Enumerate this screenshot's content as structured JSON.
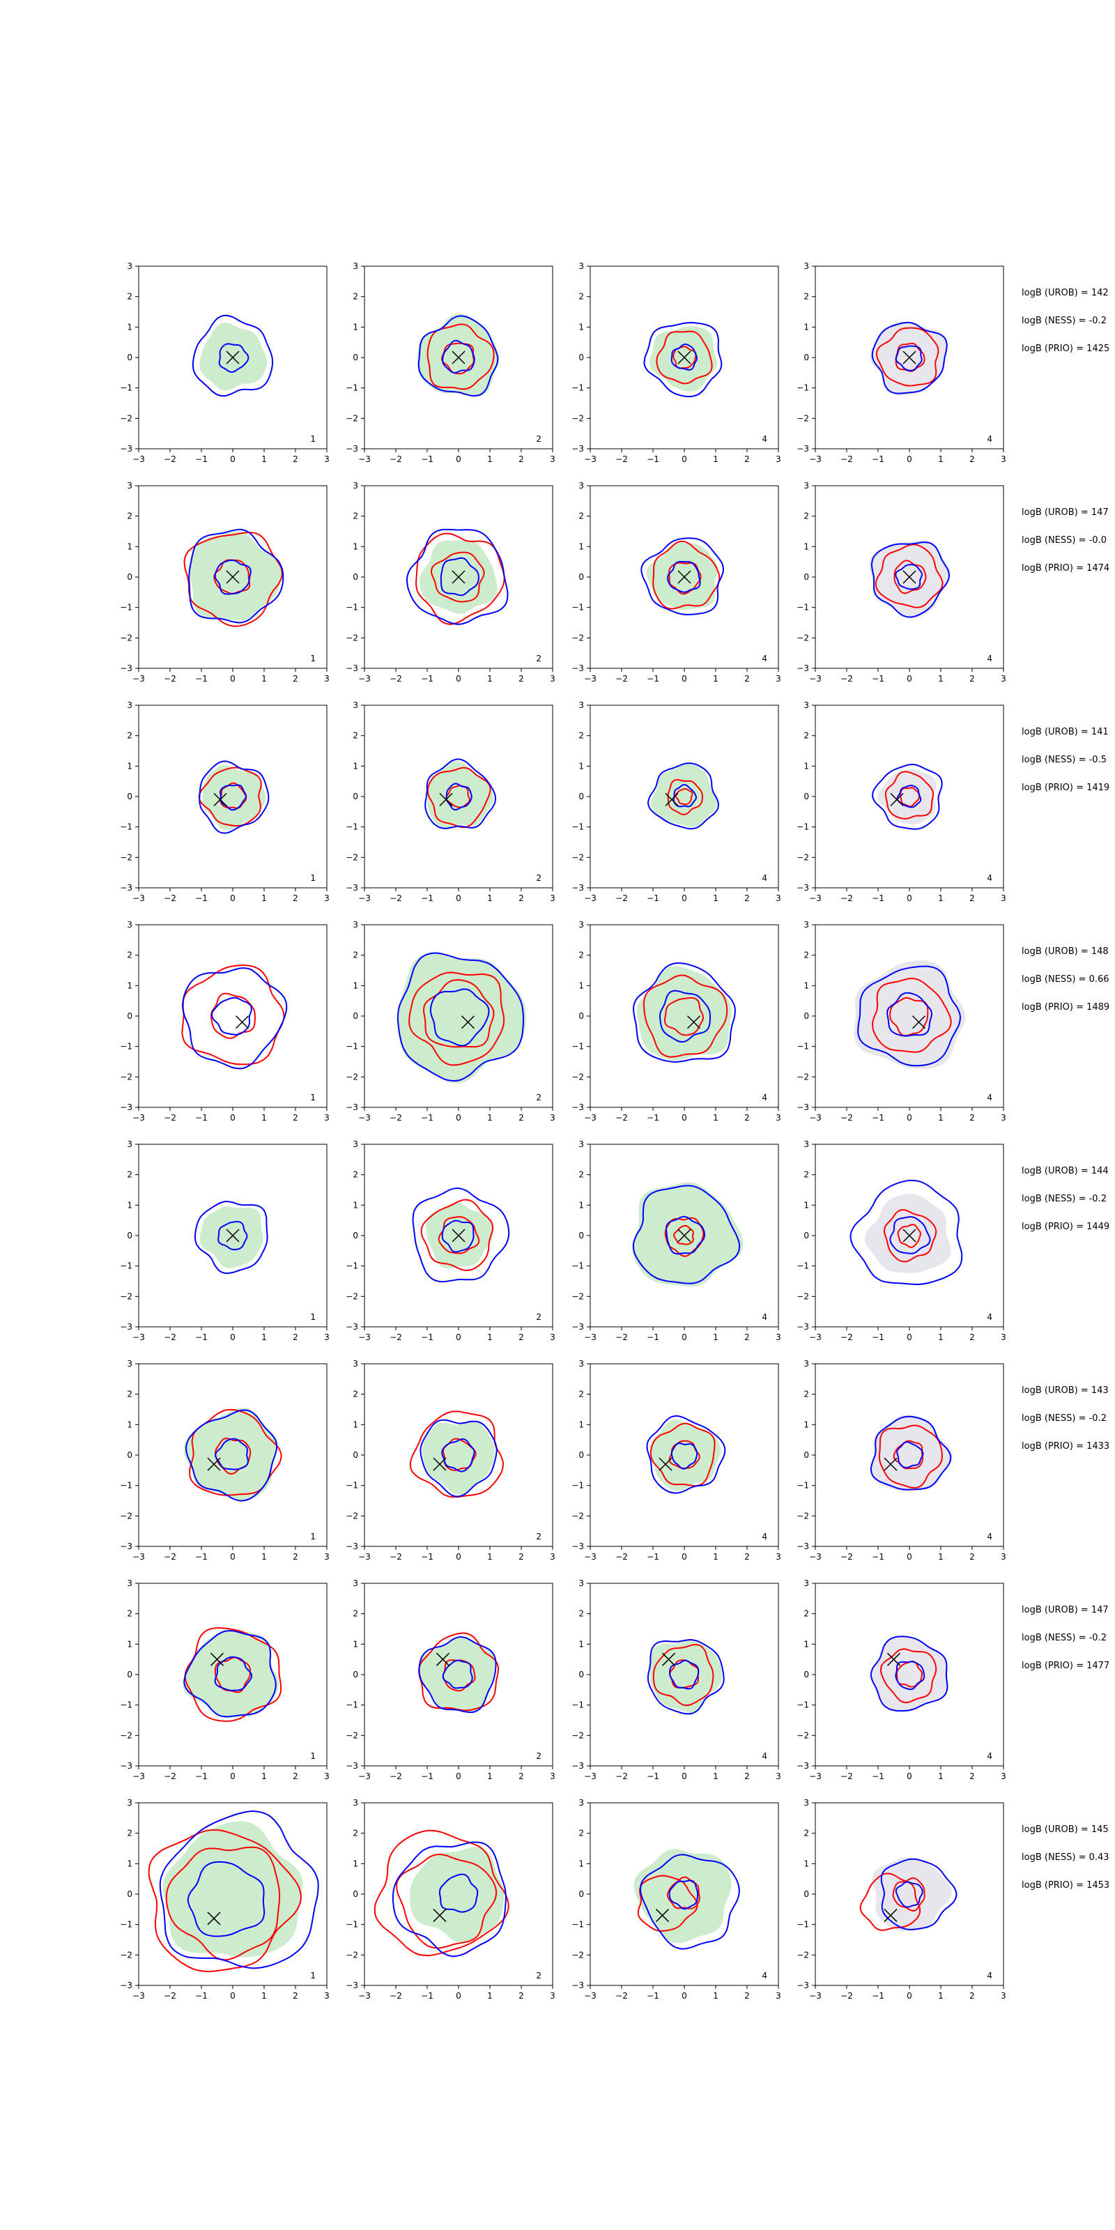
{
  "chart_data": {
    "type": "contour-grid",
    "rows": 8,
    "cols": 4,
    "xlim": [
      -3,
      3
    ],
    "ylim": [
      -3,
      3
    ],
    "ticks": [
      -3,
      -2,
      -1,
      0,
      1,
      2,
      3
    ],
    "tick_labels": [
      "−3",
      "−2",
      "−1",
      "0",
      "1",
      "2",
      "3"
    ],
    "colors": {
      "blue": "#0000ff",
      "red": "#ff0000",
      "green_fill": "#cdeccd",
      "grey_fill": "#e6e6ec",
      "marker": "#000000"
    },
    "column_labels": [
      "1",
      "2",
      "4",
      "4"
    ],
    "column_fill": [
      "green",
      "green",
      "green",
      "grey"
    ],
    "panels": [
      {
        "row": 1,
        "marker": [
          0.0,
          0.0
        ],
        "blue": [
          [
            0.0,
            0.0,
            0.45
          ],
          [
            0.0,
            0.0,
            1.25
          ]
        ],
        "red": [],
        "fill": 1.05
      },
      {
        "row": 1,
        "marker": [
          0.0,
          0.0
        ],
        "blue": [
          [
            0.0,
            0.0,
            0.5
          ],
          [
            0.0,
            0.0,
            1.25
          ]
        ],
        "red": [
          [
            0.0,
            0.0,
            0.5
          ],
          [
            0.0,
            0.0,
            1.05
          ]
        ],
        "fill": 1.3
      },
      {
        "row": 1,
        "marker": [
          0.0,
          0.0
        ],
        "blue": [
          [
            0.0,
            0.0,
            0.4
          ],
          [
            0.0,
            0.0,
            1.2
          ]
        ],
        "red": [
          [
            0.0,
            0.0,
            0.35
          ],
          [
            0.0,
            0.0,
            0.85
          ]
        ],
        "fill": 1.05
      },
      {
        "row": 1,
        "marker": [
          0.0,
          0.0
        ],
        "blue": [
          [
            0.0,
            0.0,
            0.4
          ],
          [
            0.0,
            0.0,
            1.15
          ]
        ],
        "red": [
          [
            0.0,
            0.0,
            0.45
          ],
          [
            0.0,
            0.0,
            0.95
          ]
        ],
        "fill": 1.2
      },
      {
        "row": 2,
        "marker": [
          0.0,
          0.0
        ],
        "blue": [
          [
            0.0,
            0.0,
            0.55
          ],
          [
            0.0,
            0.0,
            1.5
          ]
        ],
        "red": [
          [
            0.0,
            0.0,
            0.55
          ],
          [
            0.0,
            0.0,
            1.5
          ]
        ],
        "fill": 1.45
      },
      {
        "row": 2,
        "marker": [
          0.0,
          0.0
        ],
        "blue": [
          [
            0.0,
            0.0,
            0.6
          ],
          [
            0.0,
            0.0,
            1.55
          ]
        ],
        "red": [
          [
            0.0,
            0.0,
            0.8
          ],
          [
            0.0,
            0.0,
            1.4
          ]
        ],
        "fill": 1.2
      },
      {
        "row": 2,
        "marker": [
          0.0,
          0.0
        ],
        "blue": [
          [
            0.0,
            0.0,
            0.5
          ],
          [
            0.0,
            0.0,
            1.25
          ]
        ],
        "red": [
          [
            0.0,
            0.0,
            0.5
          ],
          [
            0.0,
            0.0,
            1.05
          ]
        ],
        "fill": 1.1
      },
      {
        "row": 2,
        "marker": [
          0.0,
          0.0
        ],
        "blue": [
          [
            0.0,
            0.0,
            0.4
          ],
          [
            0.0,
            0.0,
            1.2
          ]
        ],
        "red": [
          [
            0.0,
            0.0,
            0.5
          ],
          [
            0.0,
            0.0,
            1.0
          ]
        ],
        "fill": 1.25
      },
      {
        "row": 3,
        "marker": [
          -0.4,
          -0.1
        ],
        "blue": [
          [
            0.0,
            0.0,
            0.4
          ],
          [
            0.0,
            0.0,
            1.1
          ]
        ],
        "red": [
          [
            0.0,
            0.0,
            0.4
          ],
          [
            0.0,
            0.0,
            0.95
          ]
        ],
        "fill": 1.0
      },
      {
        "row": 3,
        "marker": [
          -0.4,
          -0.1
        ],
        "blue": [
          [
            0.0,
            0.0,
            0.4
          ],
          [
            0.0,
            0.0,
            1.1
          ]
        ],
        "red": [
          [
            0.0,
            0.0,
            0.35
          ],
          [
            0.0,
            0.0,
            0.95
          ]
        ],
        "fill": 1.05
      },
      {
        "row": 3,
        "marker": [
          -0.4,
          -0.1
        ],
        "blue": [
          [
            0.0,
            0.0,
            0.35
          ],
          [
            0.0,
            0.0,
            1.05
          ]
        ],
        "red": [
          [
            0.0,
            0.0,
            0.25
          ],
          [
            0.0,
            0.0,
            0.55
          ]
        ],
        "fill": 1.0
      },
      {
        "row": 3,
        "marker": [
          -0.4,
          -0.1
        ],
        "blue": [
          [
            0.0,
            0.0,
            0.35
          ],
          [
            0.0,
            0.0,
            1.05
          ]
        ],
        "red": [
          [
            0.0,
            0.0,
            0.3
          ],
          [
            0.0,
            0.0,
            0.75
          ]
        ],
        "fill": 0.9
      },
      {
        "row": 4,
        "marker": [
          0.3,
          -0.2
        ],
        "blue": [
          [
            0.0,
            0.0,
            0.6
          ],
          [
            0.0,
            0.0,
            1.6
          ]
        ],
        "red": [
          [
            0.0,
            0.0,
            0.7
          ],
          [
            0.0,
            0.0,
            1.6
          ]
        ],
        "fill": 0.0
      },
      {
        "row": 4,
        "marker": [
          0.3,
          -0.2
        ],
        "blue": [
          [
            0.0,
            0.0,
            0.9
          ],
          [
            0.0,
            0.0,
            2.0
          ]
        ],
        "red": [
          [
            0.0,
            0.0,
            1.1
          ],
          [
            0.0,
            0.0,
            1.5
          ]
        ],
        "fill": 2.05
      },
      {
        "row": 4,
        "marker": [
          0.3,
          -0.2
        ],
        "blue": [
          [
            0.0,
            0.0,
            0.8
          ],
          [
            0.0,
            0.0,
            1.6
          ]
        ],
        "red": [
          [
            0.0,
            0.0,
            0.6
          ],
          [
            0.0,
            0.0,
            1.3
          ]
        ],
        "fill": 1.5
      },
      {
        "row": 4,
        "marker": [
          0.3,
          -0.2
        ],
        "blue": [
          [
            0.0,
            0.0,
            0.7
          ],
          [
            0.0,
            0.0,
            1.6
          ]
        ],
        "red": [
          [
            0.0,
            0.0,
            0.6
          ],
          [
            0.0,
            0.0,
            1.2
          ]
        ],
        "fill": 1.75
      },
      {
        "row": 5,
        "marker": [
          0.0,
          0.0
        ],
        "blue": [
          [
            0.0,
            0.0,
            0.45
          ],
          [
            0.0,
            0.0,
            1.15
          ]
        ],
        "red": [],
        "fill": 1.0
      },
      {
        "row": 5,
        "marker": [
          0.0,
          0.0
        ],
        "blue": [
          [
            0.0,
            0.0,
            0.5
          ],
          [
            0.0,
            0.0,
            1.5
          ]
        ],
        "red": [
          [
            0.0,
            0.0,
            0.6
          ],
          [
            0.0,
            0.0,
            1.1
          ]
        ],
        "fill": 1.05
      },
      {
        "row": 5,
        "marker": [
          0.0,
          0.0
        ],
        "blue": [
          [
            0.0,
            0.0,
            0.6
          ],
          [
            0.0,
            0.0,
            1.6
          ]
        ],
        "red": [
          [
            0.0,
            0.0,
            0.3
          ],
          [
            0.0,
            0.0,
            0.6
          ]
        ],
        "fill": 1.7
      },
      {
        "row": 5,
        "marker": [
          0.0,
          0.0
        ],
        "blue": [
          [
            0.0,
            0.0,
            0.6
          ],
          [
            0.0,
            0.0,
            1.7
          ]
        ],
        "red": [
          [
            0.0,
            0.0,
            0.35
          ],
          [
            0.0,
            0.0,
            0.8
          ]
        ],
        "fill": 1.3
      },
      {
        "row": 6,
        "marker": [
          -0.6,
          -0.3
        ],
        "blue": [
          [
            0.0,
            0.0,
            0.5
          ],
          [
            0.0,
            0.0,
            1.4
          ]
        ],
        "red": [
          [
            0.0,
            0.0,
            0.55
          ],
          [
            0.0,
            0.0,
            1.4
          ]
        ],
        "fill": 1.45
      },
      {
        "row": 6,
        "marker": [
          -0.6,
          -0.3
        ],
        "blue": [
          [
            0.0,
            0.0,
            0.5
          ],
          [
            0.0,
            0.0,
            1.2
          ]
        ],
        "red": [
          [
            0.0,
            0.0,
            0.5
          ],
          [
            0.0,
            0.0,
            1.4
          ]
        ],
        "fill": 1.15
      },
      {
        "row": 6,
        "marker": [
          -0.6,
          -0.3
        ],
        "blue": [
          [
            0.0,
            0.0,
            0.4
          ],
          [
            0.0,
            0.0,
            1.2
          ]
        ],
        "red": [
          [
            0.0,
            0.0,
            0.45
          ],
          [
            0.0,
            0.0,
            1.0
          ]
        ],
        "fill": 1.1
      },
      {
        "row": 6,
        "marker": [
          -0.6,
          -0.3
        ],
        "blue": [
          [
            0.0,
            0.0,
            0.4
          ],
          [
            0.0,
            0.0,
            1.2
          ]
        ],
        "red": [
          [
            0.0,
            0.0,
            0.45
          ],
          [
            0.0,
            0.0,
            1.0
          ]
        ],
        "fill": 1.25
      },
      {
        "row": 7,
        "marker": [
          -0.5,
          0.5
        ],
        "blue": [
          [
            0.0,
            0.0,
            0.55
          ],
          [
            0.0,
            0.0,
            1.4
          ]
        ],
        "red": [
          [
            0.0,
            0.0,
            0.55
          ],
          [
            0.0,
            0.0,
            1.5
          ]
        ],
        "fill": 1.45
      },
      {
        "row": 7,
        "marker": [
          -0.5,
          0.5
        ],
        "blue": [
          [
            0.0,
            0.0,
            0.45
          ],
          [
            0.0,
            0.0,
            1.2
          ]
        ],
        "red": [
          [
            0.0,
            0.0,
            0.5
          ],
          [
            0.0,
            0.0,
            1.25
          ]
        ],
        "fill": 1.2
      },
      {
        "row": 7,
        "marker": [
          -0.5,
          0.5
        ],
        "blue": [
          [
            0.0,
            0.0,
            0.45
          ],
          [
            0.0,
            0.0,
            1.2
          ]
        ],
        "red": [
          [
            0.0,
            0.0,
            0.45
          ],
          [
            0.0,
            0.0,
            0.95
          ]
        ],
        "fill": 1.15
      },
      {
        "row": 7,
        "marker": [
          -0.5,
          0.5
        ],
        "blue": [
          [
            0.0,
            0.0,
            0.45
          ],
          [
            0.0,
            0.0,
            1.2
          ]
        ],
        "red": [
          [
            0.0,
            0.0,
            0.4
          ],
          [
            0.0,
            0.0,
            0.85
          ]
        ],
        "fill": 1.2
      },
      {
        "row": 8,
        "marker": [
          -0.6,
          -0.8
        ],
        "blue": [
          [
            -0.2,
            -0.2,
            1.2
          ],
          [
            0.2,
            0.0,
            2.5
          ]
        ],
        "red": [
          [
            -0.2,
            -0.2,
            1.8
          ],
          [
            -0.4,
            -0.2,
            2.3
          ]
        ],
        "fill": 2.2
      },
      {
        "row": 8,
        "marker": [
          -0.6,
          -0.7
        ],
        "blue": [
          [
            0.0,
            0.0,
            0.6
          ],
          [
            -0.2,
            -0.1,
            1.8
          ]
        ],
        "red": [
          [
            -0.4,
            -0.2,
            1.5
          ],
          [
            -0.6,
            0.0,
            2.0
          ]
        ],
        "fill": 1.5
      },
      {
        "row": 8,
        "marker": [
          -0.7,
          -0.7
        ],
        "blue": [
          [
            0.0,
            0.0,
            0.45
          ],
          [
            0.2,
            -0.2,
            1.5
          ]
        ],
        "red": [
          [
            -0.6,
            -0.3,
            0.9
          ],
          [
            0.0,
            0.0,
            0.5
          ]
        ],
        "fill": 1.5
      },
      {
        "row": 8,
        "marker": [
          -0.6,
          -0.7
        ],
        "blue": [
          [
            0.0,
            0.0,
            0.4
          ],
          [
            0.2,
            0.0,
            1.15
          ]
        ],
        "red": [
          [
            -0.6,
            -0.3,
            0.9
          ],
          [
            0.0,
            0.0,
            0.5
          ]
        ],
        "fill": 1.2
      }
    ],
    "annotations": [
      [
        "logB (UROB) = 142",
        "logB (NESS) = -0.2",
        "logB (PRIO) = 1425"
      ],
      [
        "logB (UROB) = 147",
        "logB (NESS) = -0.0",
        "logB (PRIO) = 1474"
      ],
      [
        "logB (UROB) = 141",
        "logB (NESS) = -0.5",
        "logB (PRIO) = 1419"
      ],
      [
        "logB (UROB) = 148",
        "logB (NESS) = 0.66",
        "logB (PRIO) = 1489"
      ],
      [
        "logB (UROB) = 144",
        "logB (NESS) = -0.2",
        "logB (PRIO) = 1449"
      ],
      [
        "logB (UROB) = 143",
        "logB (NESS) = -0.2",
        "logB (PRIO) = 1433"
      ],
      [
        "logB (UROB) = 147",
        "logB (NESS) = -0.2",
        "logB (PRIO) = 1477"
      ],
      [
        "logB (UROB) = 145",
        "logB (NESS) = 0.43",
        "logB (PRIO) = 1453"
      ]
    ]
  }
}
